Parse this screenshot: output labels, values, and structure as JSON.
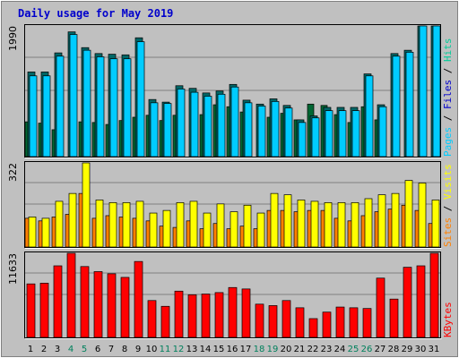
{
  "chart_data": {
    "type": "bar",
    "title": "Daily usage for May 2019",
    "categories": [
      "1",
      "2",
      "3",
      "4",
      "5",
      "6",
      "7",
      "8",
      "9",
      "10",
      "11",
      "12",
      "13",
      "14",
      "15",
      "16",
      "17",
      "18",
      "19",
      "20",
      "21",
      "22",
      "23",
      "24",
      "25",
      "26",
      "27",
      "28",
      "29",
      "30",
      "31"
    ],
    "weekend_days": [
      "4",
      "5",
      "11",
      "12",
      "18",
      "19",
      "25",
      "26"
    ],
    "panels": [
      {
        "name": "top",
        "ylabel_max": "1990",
        "ymax": 1990,
        "ylim": [
          0,
          1990
        ],
        "legend": [
          "Pages",
          "Files",
          "Hits"
        ],
        "series": [
          {
            "name": "Pages",
            "color": "#006633",
            "values": [
              530,
              510,
              410,
              0,
              530,
              520,
              490,
              550,
              600,
              630,
              550,
              630,
              0,
              640,
              790,
              760,
              680,
              0,
              600,
              660,
              560,
              800,
              780,
              640,
              520,
              760,
              560,
              0,
              0,
              0,
              0
            ]
          },
          {
            "name": "Hits",
            "color": "#006666",
            "values": [
              1290,
              1290,
              1580,
              1900,
              1660,
              1570,
              1560,
              1550,
              1810,
              870,
              830,
              1080,
              1040,
              970,
              1000,
              1100,
              860,
              800,
              880,
              780,
              560,
              620,
              750,
              750,
              750,
              1260,
              790,
              1570,
              1620,
              1990,
              1990
            ]
          },
          {
            "name": "Files",
            "color": "#00ccff",
            "values": [
              1230,
              1230,
              1530,
              1860,
              1620,
              1520,
              1490,
              1490,
              1750,
              820,
              810,
              1030,
              980,
              920,
              950,
              1060,
              820,
              770,
              840,
              740,
              520,
              590,
              700,
              700,
              700,
              1230,
              760,
              1530,
              1590,
              1990,
              1990
            ]
          }
        ]
      },
      {
        "name": "middle",
        "ylabel_max": "322",
        "ymax": 322,
        "ylim": [
          0,
          322
        ],
        "legend": [
          "Sites",
          "Visits"
        ],
        "series": [
          {
            "name": "Sites",
            "color": "#ff8000",
            "values": [
              110,
              100,
              115,
              125,
              205,
              110,
              120,
              115,
              110,
              100,
              80,
              75,
              100,
              70,
              90,
              70,
              80,
              70,
              140,
              140,
              135,
              140,
              140,
              110,
              100,
              120,
              135,
              145,
              160,
              140,
              90
            ]
          },
          {
            "name": "Visits",
            "color": "#ffff00",
            "values": [
              115,
              110,
              175,
              205,
              325,
              180,
              170,
              170,
              175,
              130,
              140,
              170,
              175,
              130,
              165,
              135,
              160,
              130,
              205,
              200,
              180,
              175,
              170,
              170,
              170,
              185,
              200,
              205,
              255,
              245,
              180
            ]
          }
        ]
      },
      {
        "name": "bottom",
        "ylabel_max": "11633",
        "ymax": 11633,
        "ylim": [
          0,
          11633
        ],
        "legend": [
          "KBytes"
        ],
        "series": [
          {
            "name": "KBytes",
            "color": "#ff0000",
            "values": [
              7400,
              7500,
              9900,
              11700,
              9800,
              9100,
              8800,
              8300,
              10500,
              5100,
              4300,
              6400,
              5900,
              6000,
              6200,
              6900,
              6700,
              4600,
              4400,
              5100,
              4100,
              2600,
              3500,
              4200,
              4100,
              4000,
              8200,
              5300,
              9700,
              9900,
              11900
            ]
          }
        ]
      }
    ],
    "xlabel": "",
    "ylabel": "",
    "grid": true
  },
  "colors": {
    "background": "#c0c0c0",
    "weekend_label": "#00805c",
    "weekday_label": "#000000"
  }
}
